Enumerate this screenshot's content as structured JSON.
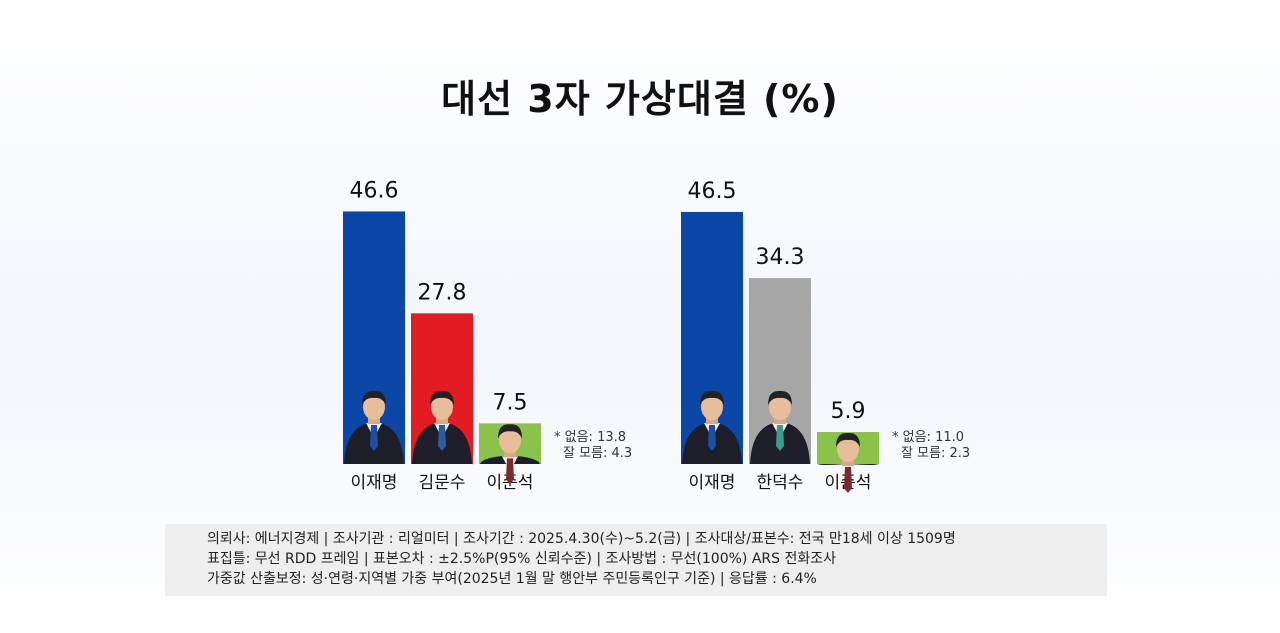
{
  "title": "대선 3자 가상대결 (%)",
  "chart_data": [
    {
      "type": "bar",
      "categories": [
        "이재명",
        "김문수",
        "이준석"
      ],
      "values": [
        46.6,
        27.8,
        7.5
      ],
      "value_labels": [
        "46.6",
        "27.8",
        "7.5"
      ],
      "colors": [
        "#0a47a6",
        "#e31c23",
        "#8bc34a"
      ],
      "notes": [
        "* 없음: 13.8",
        "잘 모름: 4.3"
      ],
      "ylim": [
        0,
        50
      ]
    },
    {
      "type": "bar",
      "categories": [
        "이재명",
        "한덕수",
        "이준석"
      ],
      "values": [
        46.5,
        34.3,
        5.9
      ],
      "value_labels": [
        "46.5",
        "34.3",
        "5.9"
      ],
      "colors": [
        "#0a47a6",
        "#a6a6a6",
        "#8bc34a"
      ],
      "notes": [
        "* 없음: 11.0",
        "잘 모름: 2.3"
      ],
      "ylim": [
        0,
        50
      ]
    }
  ],
  "footer": {
    "line1": "의뢰사: 에너지경제 | 조사기관 : 리얼미터  |  조사기간 : 2025.4.30(수)~5.2(금) | 조사대상/표본수: 전국 만18세 이상 1509명",
    "line2": "표집틀: 무선 RDD 프레임 | 표본오차 : ±2.5%P(95% 신뢰수준) | 조사방법 : 무선(100%) ARS 전화조사",
    "line3": "가중값 산출보정: 성·연령·지역별 가중 부여(2025년 1월 말 행안부 주민등록인구 기준) | 응답률 : 6.4%"
  }
}
